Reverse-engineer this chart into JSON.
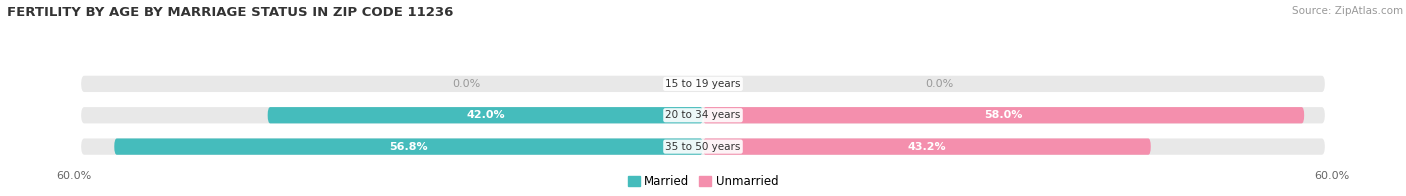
{
  "title": "FERTILITY BY AGE BY MARRIAGE STATUS IN ZIP CODE 11236",
  "source": "Source: ZipAtlas.com",
  "categories": [
    "15 to 19 years",
    "20 to 34 years",
    "35 to 50 years"
  ],
  "married_values": [
    0.0,
    42.0,
    56.8
  ],
  "unmarried_values": [
    0.0,
    58.0,
    43.2
  ],
  "married_color": "#45BCBC",
  "unmarried_color": "#F48FAD",
  "bar_bg_color": "#E8E8E8",
  "axis_label_value": 60.0,
  "title_fontsize": 9.5,
  "source_fontsize": 7.5,
  "label_fontsize": 8,
  "category_fontsize": 7.5,
  "legend_fontsize": 8.5,
  "bar_height": 0.52,
  "bar_gap": 0.35,
  "figsize": [
    14.06,
    1.96
  ],
  "dpi": 100
}
